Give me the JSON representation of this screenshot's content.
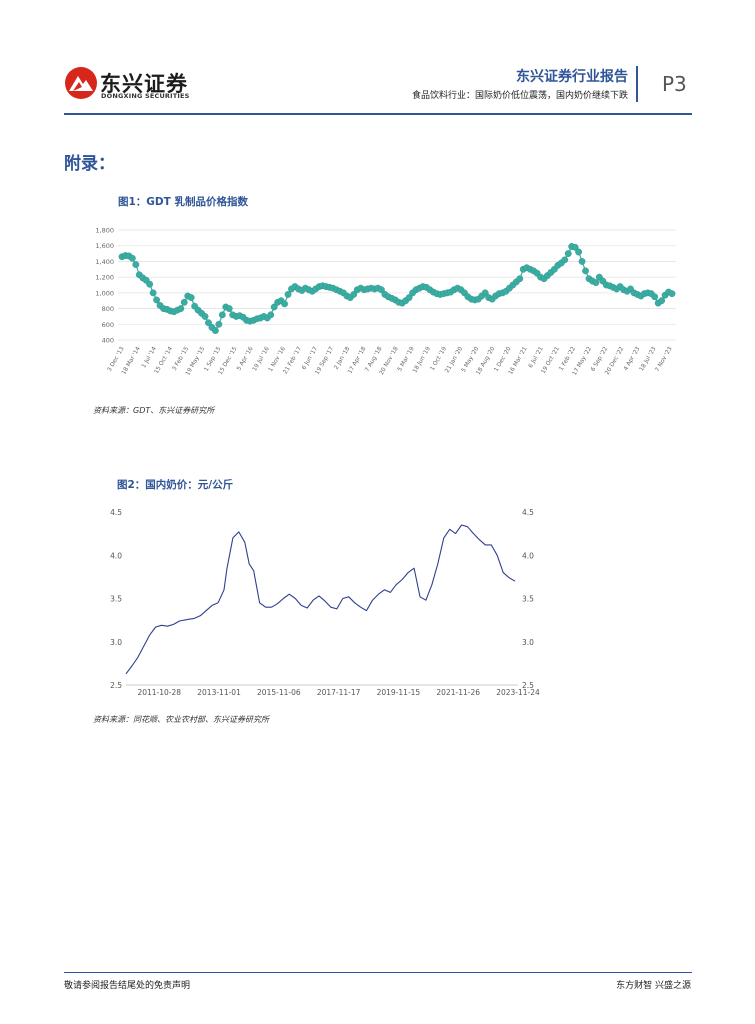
{
  "header": {
    "logo_cn": "东兴证券",
    "logo_en": "DONGXING SECURITIES",
    "report_title": "东兴证券行业报告",
    "report_subtitle": "食品饮料行业：国际奶价低位震荡，国内奶价继续下跌",
    "page_number": "P3"
  },
  "section_title": "附录：",
  "figure1": {
    "title": "图1：GDT 乳制品价格指数",
    "source": "资料来源：GDT、东兴证券研究所"
  },
  "figure2": {
    "title": "图2：国内奶价：元/公斤",
    "source": "资料来源：同花顺、农业农村部、东兴证券研究所"
  },
  "footer": {
    "left": "敬请参阅报告结尾处的免责声明",
    "right": "东方财智  兴盛之源"
  },
  "colors": {
    "brand_blue": "#2f5597",
    "gdt_marker": "#3aada2",
    "milk_line": "#2e3f8f",
    "logo_red": "#d7261b"
  },
  "chart_data": [
    {
      "type": "line",
      "title": "GDT 乳制品价格指数",
      "ylim": [
        400,
        1800
      ],
      "yticks": [
        "400",
        "600",
        "800",
        "1,000",
        "1,200",
        "1,400",
        "1,600",
        "1,800"
      ],
      "grid": true,
      "legend": "none",
      "x_tick_labels": [
        "3 Dec '13",
        "18 Mar '14",
        "1 Jul '14",
        "15 Oct '14",
        "3 Feb '15",
        "19 May '15",
        "1 Sep '15",
        "15 Dec '15",
        "5 Apr '16",
        "19 Jul '16",
        "1 Nov '16",
        "21 Feb '17",
        "6 Jun '17",
        "19 Sep '17",
        "2 Jan '18",
        "17 Apr '18",
        "7 Aug '18",
        "20 Nov '18",
        "5 Mar '19",
        "18 Jun '19",
        "1 Oct '19",
        "21 Jan '20",
        "5 May '20",
        "18 Aug '20",
        "1 Dec '20",
        "16 Mar '21",
        "6 Jul '21",
        "19 Oct '21",
        "1 Feb '22",
        "17 May '22",
        "6 Sep '22",
        "20 Dec '22",
        "4 Apr '23",
        "18 Jul '23",
        "7 Nov '23"
      ],
      "series": [
        {
          "values": [
            1460,
            1475,
            1470,
            1440,
            1360,
            1230,
            1190,
            1160,
            1110,
            1000,
            910,
            840,
            800,
            790,
            770,
            760,
            780,
            800,
            880,
            960,
            940,
            830,
            780,
            740,
            700,
            620,
            560,
            520,
            600,
            720,
            820,
            800,
            720,
            700,
            710,
            690,
            650,
            640,
            650,
            670,
            680,
            700,
            680,
            720,
            820,
            880,
            900,
            860,
            980,
            1050,
            1080,
            1050,
            1030,
            1060,
            1040,
            1020,
            1050,
            1080,
            1090,
            1080,
            1070,
            1060,
            1040,
            1020,
            1000,
            960,
            940,
            980,
            1040,
            1060,
            1040,
            1050,
            1060,
            1050,
            1060,
            1040,
            980,
            950,
            930,
            910,
            880,
            870,
            900,
            940,
            1000,
            1040,
            1060,
            1080,
            1070,
            1040,
            1010,
            990,
            980,
            990,
            1000,
            1010,
            1040,
            1060,
            1040,
            1000,
            950,
            920,
            910,
            920,
            960,
            1000,
            940,
            920,
            960,
            990,
            1000,
            1020,
            1060,
            1100,
            1140,
            1180,
            1300,
            1320,
            1300,
            1280,
            1250,
            1200,
            1180,
            1220,
            1260,
            1300,
            1350,
            1380,
            1420,
            1500,
            1590,
            1580,
            1520,
            1400,
            1280,
            1180,
            1150,
            1130,
            1200,
            1150,
            1100,
            1090,
            1070,
            1050,
            1080,
            1040,
            1020,
            1050,
            1000,
            980,
            960,
            990,
            1000,
            990,
            950,
            870,
            900,
            970,
            1010,
            990
          ]
        }
      ]
    },
    {
      "type": "line",
      "title": "国内奶价：元/公斤",
      "ylim": [
        2.5,
        4.5
      ],
      "yticks": [
        "2.5",
        "3.0",
        "3.5",
        "4.0",
        "4.5"
      ],
      "y2ticks": [
        "2.5",
        "3.0",
        "3.5",
        "4.0",
        "4.5"
      ],
      "grid": false,
      "legend": "none",
      "x_tick_labels": [
        "2011-10-28",
        "2013-11-01",
        "2015-11-06",
        "2017-11-17",
        "2019-11-15",
        "2021-11-26",
        "2023-11-24"
      ],
      "x_range": [
        2010.7,
        2023.9
      ],
      "series": [
        {
          "x": [
            2010.7,
            2010.9,
            2011.1,
            2011.3,
            2011.5,
            2011.7,
            2011.9,
            2012.1,
            2012.3,
            2012.5,
            2012.8,
            2013.0,
            2013.2,
            2013.4,
            2013.6,
            2013.8,
            2014.0,
            2014.1,
            2014.3,
            2014.5,
            2014.7,
            2014.85,
            2015.0,
            2015.2,
            2015.4,
            2015.6,
            2015.8,
            2016.0,
            2016.2,
            2016.4,
            2016.6,
            2016.8,
            2017.0,
            2017.2,
            2017.4,
            2017.6,
            2017.8,
            2018.0,
            2018.2,
            2018.4,
            2018.6,
            2018.8,
            2019.0,
            2019.2,
            2019.4,
            2019.6,
            2019.8,
            2020.0,
            2020.2,
            2020.4,
            2020.6,
            2020.8,
            2021.0,
            2021.2,
            2021.4,
            2021.6,
            2021.8,
            2022.0,
            2022.2,
            2022.4,
            2022.6,
            2022.8,
            2023.0,
            2023.2,
            2023.4,
            2023.6,
            2023.8
          ],
          "values": [
            2.63,
            2.72,
            2.82,
            2.95,
            3.08,
            3.17,
            3.19,
            3.18,
            3.2,
            3.24,
            3.26,
            3.27,
            3.3,
            3.36,
            3.42,
            3.45,
            3.6,
            3.85,
            4.2,
            4.27,
            4.15,
            3.9,
            3.82,
            3.45,
            3.4,
            3.4,
            3.44,
            3.5,
            3.55,
            3.5,
            3.42,
            3.39,
            3.48,
            3.53,
            3.47,
            3.4,
            3.38,
            3.5,
            3.52,
            3.45,
            3.4,
            3.36,
            3.48,
            3.55,
            3.6,
            3.57,
            3.66,
            3.72,
            3.8,
            3.85,
            3.52,
            3.48,
            3.66,
            3.9,
            4.2,
            4.3,
            4.25,
            4.35,
            4.33,
            4.25,
            4.18,
            4.12,
            4.12,
            4.0,
            3.8,
            3.74,
            3.7
          ]
        }
      ]
    }
  ]
}
